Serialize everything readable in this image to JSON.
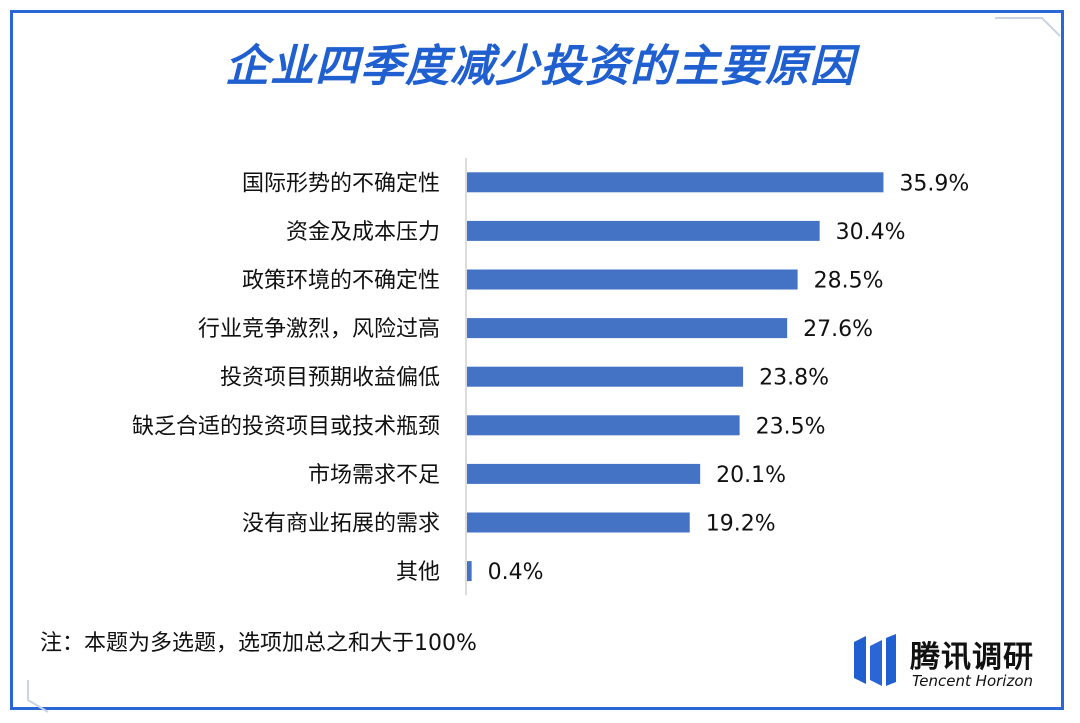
{
  "chart_data": {
    "type": "bar",
    "orientation": "horizontal",
    "title": "企业四季度减少投资的主要原因",
    "categories": [
      "国际形势的不确定性",
      "资金及成本压力",
      "政策环境的不确定性",
      "行业竞争激烈，风险过高",
      "投资项目预期收益偏低",
      "缺乏合适的投资项目或技术瓶颈",
      "市场需求不足",
      "没有商业拓展的需求",
      "其他"
    ],
    "values": [
      35.9,
      30.4,
      28.5,
      27.6,
      23.8,
      23.5,
      20.1,
      19.2,
      0.4
    ],
    "value_labels": [
      "35.9%",
      "30.4%",
      "28.5%",
      "27.6%",
      "23.8%",
      "23.5%",
      "20.1%",
      "19.2%",
      "0.4%"
    ],
    "unit": "%",
    "xlim": [
      0,
      40
    ],
    "bar_color": "#4472c4",
    "grid": false,
    "legend": "none"
  },
  "note": "注：本题为多选题，选项加总之和大于100%",
  "brand": {
    "name": "腾讯调研",
    "subtitle": "Tencent Horizon",
    "logo_icon": "tencent-horizon-logo-icon"
  },
  "colors": {
    "title": "#1f5fd0",
    "frame": "#2a66d6",
    "bar": "#4472c4"
  }
}
